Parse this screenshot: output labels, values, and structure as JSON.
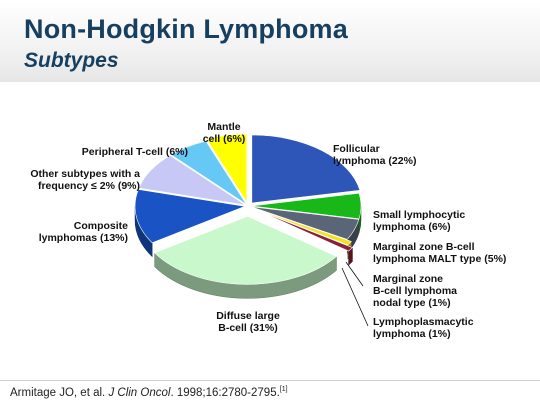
{
  "header": {
    "title": "Non-Hodgkin Lymphoma",
    "subtitle": "Subtypes"
  },
  "chart_data": {
    "type": "pie",
    "style": "3d-exploded",
    "slices": [
      {
        "key": "follicular",
        "lines": [
          "Follicular",
          "lymphoma (22%)"
        ],
        "value": 22,
        "color": "#2e56b8"
      },
      {
        "key": "small-lymphocytic",
        "lines": [
          "Small lymphocytic",
          "lymphoma (6%)"
        ],
        "value": 6,
        "color": "#17b817"
      },
      {
        "key": "marginal-malt",
        "lines": [
          "Marginal zone B-cell",
          "lymphoma MALT type (5%)"
        ],
        "value": 5,
        "color": "#5a6678"
      },
      {
        "key": "marginal-nodal",
        "lines": [
          "Marginal zone",
          "B-cell lymphoma",
          "nodal type (1%)"
        ],
        "value": 1,
        "color": "#f2e41a"
      },
      {
        "key": "lymphoplasmacytic",
        "lines": [
          "Lymphoplasmacytic",
          "lymphoma (1%)"
        ],
        "value": 1,
        "color": "#8a1f3a"
      },
      {
        "key": "diffuse-large",
        "lines": [
          "Diffuse large",
          "B-cell (31%)"
        ],
        "value": 31,
        "color": "#c8f8cc"
      },
      {
        "key": "composite",
        "lines": [
          "Composite",
          "lymphomas (13%)"
        ],
        "value": 13,
        "color": "#1a54c4"
      },
      {
        "key": "other",
        "lines": [
          "Other subtypes with a",
          "frequency ≤ 2% (9%)"
        ],
        "value": 9,
        "color": "#c8c8f6"
      },
      {
        "key": "peripheral-t",
        "lines": [
          "Peripheral T-cell (6%)"
        ],
        "value": 6,
        "color": "#66c8f4"
      },
      {
        "key": "mantle",
        "lines": [
          "Mantle",
          "cell (6%)"
        ],
        "value": 6,
        "color": "#ffff00"
      }
    ]
  },
  "footer": {
    "citation_authors": "Armitage JO, et al. ",
    "citation_journal": "J Clin Oncol",
    "citation_rest": ". 1998;16:2780-2795.",
    "citation_ref": "[1]"
  }
}
